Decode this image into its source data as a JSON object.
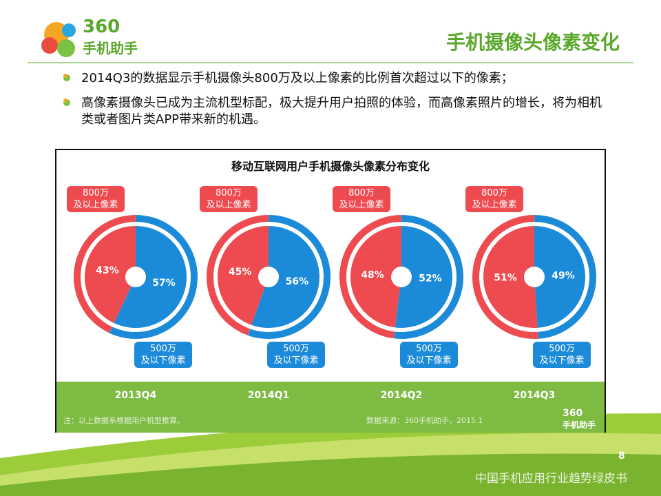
{
  "header": {
    "logo_number": "360",
    "logo_text": "手机助手",
    "title": "手机摄像头像素变化"
  },
  "bullets": [
    "2014Q3的数据显示手机摄像头800万及以上像素的比例首次超过以下的像素；",
    "高像素摄像头已成为主流机型标配，极大提升用户拍照的体验，而高像素照片的增长，将为相机类或者图片类APP带来新的机遇。"
  ],
  "panel": {
    "title": "移动互联网用户手机摄像头像素分布变化",
    "note": "注：以上数据系根据用户机型推算。",
    "source": "数据来源：360手机助手，2015.1",
    "logo_number": "360",
    "logo_text": "手机助手"
  },
  "chart_data": [
    {
      "type": "pie",
      "title": "2013Q4",
      "categories": [
        "800万\n及以上像素",
        "500万\n及以下像素"
      ],
      "values": [
        43,
        57
      ],
      "value_labels": [
        "43%",
        "57%"
      ],
      "colors": [
        "#ee4b50",
        "#1b8bd9"
      ]
    },
    {
      "type": "pie",
      "title": "2014Q1",
      "categories": [
        "800万\n及以上像素",
        "500万\n及以下像素"
      ],
      "values": [
        45,
        56
      ],
      "value_labels": [
        "45%",
        "56%"
      ],
      "colors": [
        "#ee4b50",
        "#1b8bd9"
      ]
    },
    {
      "type": "pie",
      "title": "2014Q2",
      "categories": [
        "800万\n及以上像素",
        "500万\n及以下像素"
      ],
      "values": [
        48,
        52
      ],
      "value_labels": [
        "48%",
        "52%"
      ],
      "colors": [
        "#ee4b50",
        "#1b8bd9"
      ]
    },
    {
      "type": "pie",
      "title": "2014Q3",
      "categories": [
        "800万\n及以上像素",
        "500万\n及以下像素"
      ],
      "values": [
        51,
        49
      ],
      "value_labels": [
        "51%",
        "49%"
      ],
      "colors": [
        "#ee4b50",
        "#1b8bd9"
      ]
    }
  ],
  "footer": {
    "page": "8",
    "text": "中国手机应用行业趋势绿皮书"
  }
}
